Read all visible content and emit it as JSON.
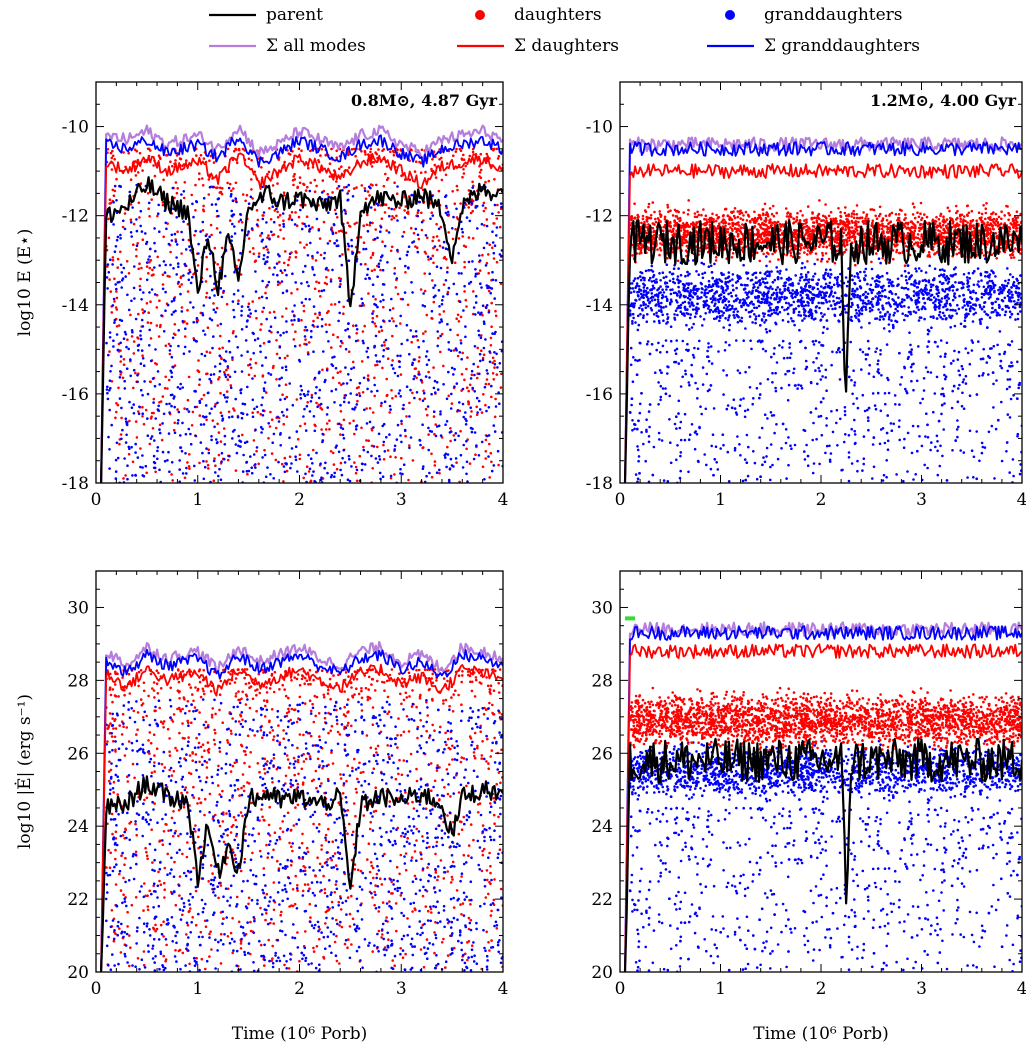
{
  "legend": [
    {
      "label": "parent",
      "marker": "line",
      "color": "#000000"
    },
    {
      "label": "daughters",
      "marker": "dot",
      "color": "#ff0000"
    },
    {
      "label": "granddaughters",
      "marker": "dot",
      "color": "#0000ff"
    },
    {
      "label": "Σ all modes",
      "marker": "line",
      "color": "#b57edc"
    },
    {
      "label": "Σ daughters",
      "marker": "line",
      "color": "#ff0000"
    },
    {
      "label": "Σ granddaughters",
      "marker": "line",
      "color": "#0000ff"
    }
  ],
  "colors": {
    "parent": "#000000",
    "daughters": "#ff0000",
    "granddaughters": "#0000ff",
    "sum_all": "#b57edc",
    "highlight": "#33dd33"
  },
  "chart_data": [
    {
      "type": "scatter",
      "title": "0.8M⊙, 4.87 Gyr",
      "xlabel": "",
      "ylabel": "log10 E  (E⋆)",
      "xlim": [
        0,
        4
      ],
      "ylim": [
        -18,
        -9
      ],
      "xticks": [
        "0",
        "1",
        "2",
        "3",
        "4"
      ],
      "yticks": [
        "-18",
        "-16",
        "-14",
        "-12",
        "-10"
      ],
      "series": [
        {
          "name": "Σ all modes",
          "x": [
            0.05,
            0.1,
            0.3,
            0.5,
            0.7,
            1.0,
            1.2,
            1.4,
            1.6,
            1.8,
            2.0,
            2.2,
            2.4,
            2.6,
            2.8,
            3.0,
            3.2,
            3.4,
            3.6,
            3.8,
            4.0
          ],
          "values": [
            -18,
            -10.2,
            -10.3,
            -10.1,
            -10.4,
            -10.2,
            -10.5,
            -10.0,
            -10.6,
            -10.4,
            -10.1,
            -10.3,
            -10.5,
            -10.2,
            -10.1,
            -10.4,
            -10.6,
            -10.3,
            -10.2,
            -10.1,
            -10.3
          ]
        },
        {
          "name": "Σ granddaughters",
          "x": [
            0.05,
            0.1,
            0.3,
            0.5,
            0.7,
            1.0,
            1.2,
            1.4,
            1.6,
            1.8,
            2.0,
            2.2,
            2.4,
            2.6,
            2.8,
            3.0,
            3.2,
            3.4,
            3.6,
            3.8,
            4.0
          ],
          "values": [
            -18,
            -10.4,
            -10.5,
            -10.3,
            -10.6,
            -10.4,
            -10.7,
            -10.2,
            -10.8,
            -10.6,
            -10.3,
            -10.5,
            -10.7,
            -10.4,
            -10.3,
            -10.6,
            -10.8,
            -10.5,
            -10.4,
            -10.3,
            -10.5
          ]
        },
        {
          "name": "Σ daughters",
          "x": [
            0.05,
            0.1,
            0.3,
            0.5,
            0.7,
            1.0,
            1.2,
            1.4,
            1.6,
            1.8,
            2.0,
            2.2,
            2.4,
            2.6,
            2.8,
            3.0,
            3.2,
            3.4,
            3.6,
            3.8,
            4.0
          ],
          "values": [
            -18,
            -10.8,
            -11.0,
            -10.7,
            -11.0,
            -10.8,
            -11.2,
            -10.6,
            -11.3,
            -11.0,
            -10.7,
            -10.9,
            -11.2,
            -10.8,
            -10.7,
            -11.0,
            -11.3,
            -10.9,
            -10.8,
            -10.7,
            -11.0
          ]
        },
        {
          "name": "parent",
          "x": [
            0.05,
            0.1,
            0.3,
            0.5,
            0.7,
            0.9,
            1.0,
            1.1,
            1.2,
            1.3,
            1.4,
            1.5,
            1.7,
            1.8,
            2.0,
            2.2,
            2.4,
            2.5,
            2.6,
            2.8,
            3.0,
            3.2,
            3.4,
            3.5,
            3.6,
            3.8,
            4.0
          ],
          "values": [
            -18,
            -12.0,
            -11.8,
            -11.3,
            -11.7,
            -11.9,
            -13.8,
            -12.4,
            -13.6,
            -12.5,
            -13.5,
            -11.8,
            -11.5,
            -11.7,
            -11.6,
            -11.8,
            -11.6,
            -14.2,
            -11.8,
            -11.6,
            -11.7,
            -11.5,
            -11.9,
            -12.9,
            -11.8,
            -11.4,
            -11.5
          ]
        },
        {
          "name": "daughters",
          "points": "scattered points, y roughly -18 to -10.5, denser above -14"
        },
        {
          "name": "granddaughters",
          "points": "scattered points, y roughly -18 to -11"
        }
      ]
    },
    {
      "type": "scatter",
      "title": "1.2M⊙, 4.00 Gyr",
      "xlabel": "",
      "ylabel": "",
      "xlim": [
        0,
        4
      ],
      "ylim": [
        -18,
        -9
      ],
      "xticks": [
        "0",
        "1",
        "2",
        "3",
        "4"
      ],
      "yticks": [
        "-18",
        "-16",
        "-14",
        "-12",
        "-10"
      ],
      "series": [
        {
          "name": "Σ all modes",
          "x": [
            0.05,
            0.1,
            4.0
          ],
          "values": [
            -18,
            -10.4,
            -10.4
          ]
        },
        {
          "name": "Σ granddaughters",
          "x": [
            0.05,
            0.1,
            4.0
          ],
          "values": [
            -18,
            -10.5,
            -10.5
          ]
        },
        {
          "name": "Σ daughters",
          "x": [
            0.05,
            0.1,
            4.0
          ],
          "values": [
            -18,
            -11.0,
            -11.0
          ]
        },
        {
          "name": "parent",
          "x": [
            0.05,
            0.1,
            2.2,
            2.25,
            2.3,
            4.0
          ],
          "values": [
            -18,
            -12.6,
            -12.6,
            -16.3,
            -12.6,
            -12.6
          ]
        },
        {
          "name": "daughters",
          "points": "dense band y -13.5 to -11.5"
        },
        {
          "name": "granddaughters",
          "points": "dense band y -15 to -12.5, sparse down to -18"
        }
      ]
    },
    {
      "type": "scatter",
      "title": "",
      "xlabel": "Time (10⁶ Porb)",
      "ylabel": "log10 |Ė|  (erg s⁻¹)",
      "xlim": [
        0,
        4
      ],
      "ylim": [
        20,
        31
      ],
      "xticks": [
        "0",
        "1",
        "2",
        "3",
        "4"
      ],
      "yticks": [
        "20",
        "22",
        "24",
        "26",
        "28",
        "30"
      ],
      "series": [
        {
          "name": "Σ all modes",
          "x": [
            0.05,
            0.1,
            0.3,
            0.5,
            0.7,
            1.0,
            1.2,
            1.4,
            1.6,
            1.8,
            2.0,
            2.2,
            2.4,
            2.6,
            2.8,
            3.0,
            3.2,
            3.4,
            3.6,
            3.8,
            4.0
          ],
          "values": [
            20,
            28.8,
            28.4,
            28.9,
            28.6,
            28.8,
            28.3,
            28.9,
            28.5,
            28.7,
            28.9,
            28.6,
            28.4,
            28.8,
            28.9,
            28.5,
            28.7,
            28.3,
            28.9,
            28.8,
            28.6
          ]
        },
        {
          "name": "Σ granddaughters",
          "x": [
            0.05,
            0.1,
            0.3,
            0.5,
            0.7,
            1.0,
            1.2,
            1.4,
            1.6,
            1.8,
            2.0,
            2.2,
            2.4,
            2.6,
            2.8,
            3.0,
            3.2,
            3.4,
            3.6,
            3.8,
            4.0
          ],
          "values": [
            20,
            28.6,
            28.2,
            28.7,
            28.4,
            28.6,
            28.1,
            28.7,
            28.3,
            28.5,
            28.7,
            28.4,
            28.2,
            28.6,
            28.7,
            28.3,
            28.5,
            28.1,
            28.7,
            28.6,
            28.4
          ]
        },
        {
          "name": "Σ daughters",
          "x": [
            0.05,
            0.1,
            0.3,
            0.5,
            0.7,
            1.0,
            1.2,
            1.4,
            1.6,
            1.8,
            2.0,
            2.2,
            2.4,
            2.6,
            2.8,
            3.0,
            3.2,
            3.4,
            3.6,
            3.8,
            4.0
          ],
          "values": [
            20,
            28.2,
            27.8,
            28.3,
            28.0,
            28.2,
            27.7,
            28.3,
            27.9,
            28.1,
            28.3,
            28.0,
            27.8,
            28.2,
            28.3,
            27.9,
            28.1,
            27.7,
            28.3,
            28.2,
            28.0
          ]
        },
        {
          "name": "parent",
          "x": [
            0.05,
            0.1,
            0.3,
            0.5,
            0.7,
            0.9,
            1.0,
            1.1,
            1.2,
            1.3,
            1.4,
            1.5,
            1.7,
            1.8,
            2.0,
            2.2,
            2.4,
            2.5,
            2.6,
            2.8,
            3.0,
            3.2,
            3.4,
            3.5,
            3.6,
            3.8,
            4.0
          ],
          "values": [
            20,
            24.5,
            24.6,
            25.2,
            24.8,
            24.7,
            22.6,
            24.0,
            22.7,
            23.5,
            22.8,
            24.7,
            24.9,
            24.7,
            24.8,
            24.6,
            24.8,
            22.2,
            24.6,
            24.8,
            24.7,
            24.9,
            24.6,
            23.7,
            24.8,
            25.0,
            24.9
          ]
        },
        {
          "name": "daughters",
          "points": "scattered points, y roughly 20 to 28, dense 24 to 28"
        },
        {
          "name": "granddaughters",
          "points": "scattered points, y roughly 20 to 27"
        }
      ]
    },
    {
      "type": "scatter",
      "title": "",
      "xlabel": "Time (10⁶ Porb)",
      "ylabel": "",
      "xlim": [
        0,
        4
      ],
      "ylim": [
        20,
        31
      ],
      "xticks": [
        "0",
        "1",
        "2",
        "3",
        "4"
      ],
      "yticks": [
        "20",
        "22",
        "24",
        "26",
        "28",
        "30"
      ],
      "series": [
        {
          "name": "Σ all modes",
          "x": [
            0.05,
            0.1,
            4.0
          ],
          "values": [
            20,
            29.4,
            29.4
          ]
        },
        {
          "name": "Σ granddaughters",
          "x": [
            0.05,
            0.1,
            4.0
          ],
          "values": [
            20,
            29.3,
            29.3
          ]
        },
        {
          "name": "Σ daughters",
          "x": [
            0.05,
            0.1,
            4.0
          ],
          "values": [
            20,
            28.8,
            28.8
          ]
        },
        {
          "name": "parent",
          "x": [
            0.05,
            0.1,
            2.2,
            2.25,
            2.3,
            4.0
          ],
          "values": [
            20,
            25.8,
            25.8,
            22.0,
            25.8,
            25.8
          ]
        },
        {
          "name": "daughters",
          "points": "dense band y 25.5 to 28"
        },
        {
          "name": "granddaughters",
          "points": "dense band y 24.5 to 27, sparse down to 20"
        },
        {
          "name": "highlight",
          "x": [
            0.05,
            0.15
          ],
          "values": [
            29.7,
            29.7
          ]
        }
      ]
    }
  ]
}
